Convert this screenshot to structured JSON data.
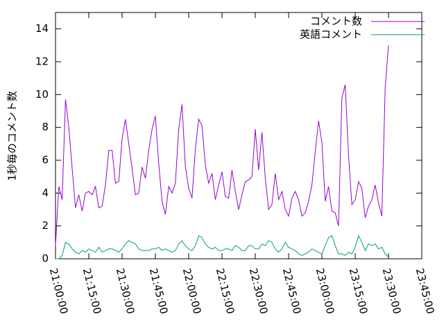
{
  "chart_data": {
    "type": "line",
    "ylabel": "1秒毎のコメント数",
    "legend": "top right",
    "grid": false,
    "x": [
      "21:00:00",
      "21:01:30",
      "21:03:00",
      "21:04:30",
      "21:06:00",
      "21:07:30",
      "21:09:00",
      "21:10:30",
      "21:12:00",
      "21:13:30",
      "21:15:00",
      "21:16:30",
      "21:18:00",
      "21:19:30",
      "21:21:00",
      "21:22:30",
      "21:24:00",
      "21:25:30",
      "21:27:00",
      "21:28:30",
      "21:30:00",
      "21:31:30",
      "21:33:00",
      "21:34:30",
      "21:36:00",
      "21:37:30",
      "21:39:00",
      "21:40:30",
      "21:42:00",
      "21:43:30",
      "21:45:00",
      "21:46:30",
      "21:48:00",
      "21:49:30",
      "21:51:00",
      "21:52:30",
      "21:54:00",
      "21:55:30",
      "21:57:00",
      "21:58:30",
      "22:00:00",
      "22:01:30",
      "22:03:00",
      "22:04:30",
      "22:06:00",
      "22:07:30",
      "22:09:00",
      "22:10:30",
      "22:12:00",
      "22:13:30",
      "22:15:00",
      "22:16:30",
      "22:18:00",
      "22:19:30",
      "22:21:00",
      "22:22:30",
      "22:24:00",
      "22:25:30",
      "22:27:00",
      "22:28:30",
      "22:30:00",
      "22:31:30",
      "22:33:00",
      "22:34:30",
      "22:36:00",
      "22:37:30",
      "22:39:00",
      "22:40:30",
      "22:42:00",
      "22:43:30",
      "22:45:00",
      "22:46:30",
      "22:48:00",
      "22:49:30",
      "22:51:00",
      "22:52:30",
      "22:54:00",
      "22:55:30",
      "22:57:00",
      "22:58:30",
      "23:00:00",
      "23:01:30",
      "23:03:00",
      "23:04:30",
      "23:06:00",
      "23:07:30",
      "23:09:00",
      "23:10:30",
      "23:12:00",
      "23:13:30",
      "23:15:00",
      "23:16:30",
      "23:18:00",
      "23:19:30",
      "23:21:00",
      "23:22:30",
      "23:24:00",
      "23:25:30",
      "23:27:00",
      "23:28:30",
      "23:30:00"
    ],
    "series": [
      {
        "name": "コメント数",
        "color": "#9400d3",
        "values": [
          0.8,
          4.4,
          3.6,
          9.7,
          8.0,
          5.5,
          3.1,
          3.9,
          2.9,
          4.0,
          4.1,
          3.9,
          4.4,
          3.1,
          3.2,
          4.5,
          6.6,
          6.6,
          4.6,
          4.7,
          7.3,
          8.5,
          7.0,
          5.5,
          3.9,
          4.0,
          5.6,
          4.9,
          6.6,
          7.9,
          8.7,
          5.8,
          3.5,
          2.7,
          4.4,
          4.0,
          4.6,
          7.9,
          9.4,
          5.6,
          4.3,
          3.7,
          6.7,
          8.5,
          8.1,
          5.7,
          4.6,
          5.2,
          3.6,
          4.5,
          5.3,
          3.8,
          3.7,
          5.4,
          4.1,
          3.0,
          3.9,
          4.7,
          4.8,
          5.0,
          7.9,
          5.4,
          7.7,
          4.9,
          3.0,
          3.3,
          5.2,
          3.6,
          4.1,
          3.0,
          2.6,
          3.7,
          4.1,
          3.6,
          2.6,
          2.8,
          3.5,
          4.5,
          6.5,
          8.4,
          7.1,
          3.5,
          4.4,
          2.9,
          2.8,
          2.0,
          9.8,
          10.6,
          6.3,
          3.3,
          3.6,
          4.7,
          4.3,
          2.5,
          3.2,
          3.6,
          4.5,
          3.4,
          2.6,
          10.4,
          13.0
        ]
      },
      {
        "name": "英語コメント",
        "color": "#009e73",
        "values": [
          0.0,
          0.0,
          0.2,
          1.0,
          0.9,
          0.6,
          0.4,
          0.3,
          0.5,
          0.4,
          0.6,
          0.5,
          0.4,
          0.7,
          0.4,
          0.5,
          0.6,
          0.6,
          0.5,
          0.4,
          0.6,
          0.9,
          1.1,
          1.0,
          0.9,
          0.6,
          0.5,
          0.5,
          0.5,
          0.6,
          0.6,
          0.7,
          0.5,
          0.6,
          0.5,
          0.4,
          0.5,
          0.9,
          1.1,
          0.8,
          0.6,
          0.5,
          0.8,
          1.4,
          1.3,
          0.9,
          0.7,
          0.6,
          0.7,
          0.5,
          0.5,
          0.6,
          0.6,
          0.5,
          0.8,
          0.7,
          0.5,
          0.5,
          0.8,
          0.8,
          0.6,
          0.6,
          0.9,
          0.8,
          1.1,
          1.0,
          0.6,
          0.4,
          0.6,
          1.0,
          0.7,
          0.6,
          0.5,
          0.3,
          0.2,
          0.3,
          0.4,
          0.6,
          0.5,
          0.4,
          0.3,
          0.8,
          1.3,
          1.4,
          0.8,
          0.3,
          0.3,
          0.2,
          0.4,
          0.3,
          0.7,
          1.4,
          1.0,
          0.5,
          0.9,
          0.8,
          0.9,
          0.6,
          0.7,
          0.3,
          0.1
        ]
      }
    ],
    "xlim": [
      "21:00:00",
      "23:45:00"
    ],
    "xticks": [
      "21:00:00",
      "21:15:00",
      "21:30:00",
      "21:45:00",
      "22:00:00",
      "22:15:00",
      "22:30:00",
      "22:45:00",
      "23:00:00",
      "23:15:00",
      "23:30:00",
      "23:45:00"
    ],
    "ylim": [
      0,
      15
    ],
    "yticks": [
      0,
      2,
      4,
      6,
      8,
      10,
      12,
      14
    ]
  }
}
